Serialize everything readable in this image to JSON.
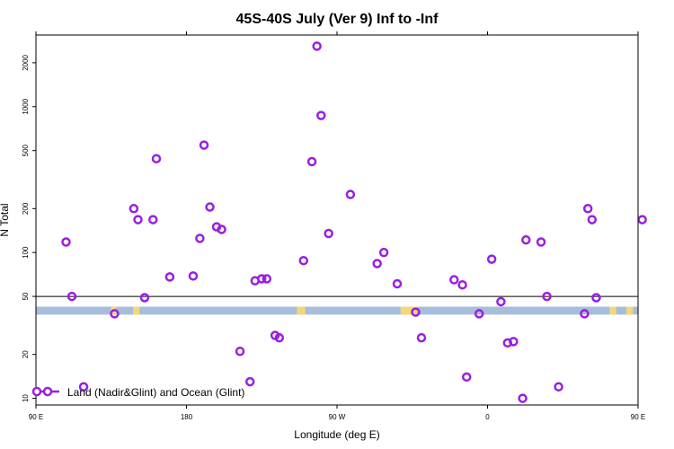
{
  "chart_data": {
    "type": "scatter",
    "title": "45S-40S July (Ver 9)   Inf to -Inf",
    "xlabel": "Longitude (deg E)",
    "ylabel": "N Total",
    "x_domain": [
      90,
      450
    ],
    "y_log": true,
    "ylim": [
      9.0,
      3100
    ],
    "x_ticks": [
      {
        "value": 90,
        "label": "90 E"
      },
      {
        "value": 180,
        "label": "180"
      },
      {
        "value": 270,
        "label": "90 W"
      },
      {
        "value": 360,
        "label": "0"
      },
      {
        "value": 450,
        "label": "90 E"
      }
    ],
    "x_ticks_top": [
      90,
      180,
      270,
      360,
      450
    ],
    "y_ticks": [
      {
        "value": 10,
        "label": "10"
      },
      {
        "value": 20,
        "label": "20"
      },
      {
        "value": 50,
        "label": "50"
      },
      {
        "value": 100,
        "label": "100"
      },
      {
        "value": 200,
        "label": "200"
      },
      {
        "value": 500,
        "label": "500"
      },
      {
        "value": 1000,
        "label": "1000"
      },
      {
        "value": 2000,
        "label": "2000"
      }
    ],
    "reference_line": 50,
    "band": {
      "y_low": 37.5,
      "y_high": 42.5,
      "color": "#a6bddb",
      "land_color": "#f6d776",
      "land_ranges": [
        [
          135,
          138
        ],
        [
          148,
          152
        ],
        [
          246,
          251
        ],
        [
          308,
          318
        ],
        [
          433,
          437
        ],
        [
          443,
          447
        ]
      ]
    },
    "series": [
      {
        "name": "Land (Nadir&Glint) and Ocean (Glint)",
        "color": "#9a1fe0",
        "points": [
          [
            108,
            118
          ],
          [
            111.5,
            50
          ],
          [
            118.5,
            12
          ],
          [
            137,
            38
          ],
          [
            148.5,
            200
          ],
          [
            151,
            168
          ],
          [
            155,
            49
          ],
          [
            160,
            168
          ],
          [
            162,
            440
          ],
          [
            170,
            68
          ],
          [
            184,
            69
          ],
          [
            188,
            125
          ],
          [
            190.5,
            545
          ],
          [
            194,
            205
          ],
          [
            198,
            150
          ],
          [
            201,
            144
          ],
          [
            212,
            21
          ],
          [
            218,
            13
          ],
          [
            221,
            64
          ],
          [
            225,
            66
          ],
          [
            228,
            66
          ],
          [
            233,
            27
          ],
          [
            235.5,
            26
          ],
          [
            250,
            88
          ],
          [
            255,
            420
          ],
          [
            258,
            2600
          ],
          [
            260.5,
            870
          ],
          [
            265,
            135
          ],
          [
            278,
            250
          ],
          [
            294,
            84
          ],
          [
            298,
            100
          ],
          [
            306,
            61
          ],
          [
            317,
            39
          ],
          [
            320.5,
            26
          ],
          [
            340,
            65
          ],
          [
            345,
            60
          ],
          [
            347.5,
            14
          ],
          [
            355,
            38
          ],
          [
            362.5,
            90
          ],
          [
            368,
            46
          ],
          [
            372,
            24
          ],
          [
            375.5,
            24.5
          ],
          [
            381,
            10
          ],
          [
            383,
            122
          ],
          [
            392,
            118
          ],
          [
            395.5,
            50
          ],
          [
            402.5,
            12
          ],
          [
            418,
            38
          ],
          [
            420,
            200
          ],
          [
            422.5,
            168
          ],
          [
            425,
            49
          ],
          [
            452.5,
            168
          ]
        ]
      }
    ]
  }
}
